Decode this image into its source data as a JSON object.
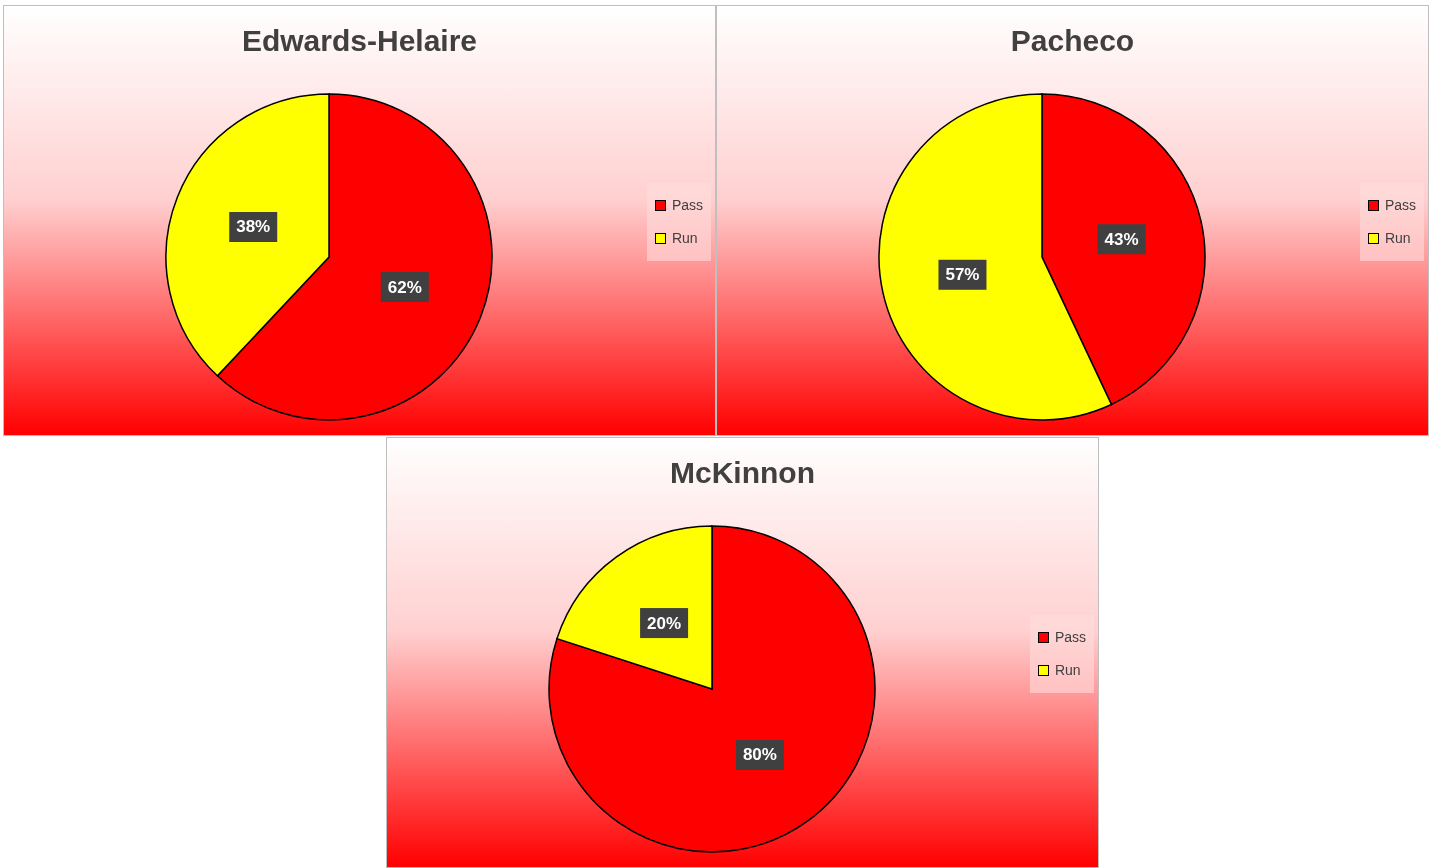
{
  "chart_data": [
    {
      "type": "pie",
      "title": "Edwards-Helaire",
      "categories": [
        "Pass",
        "Run"
      ],
      "values": [
        62,
        38
      ],
      "value_labels": [
        "62%",
        "38%"
      ],
      "colors": [
        "#ff0000",
        "#ffff00"
      ],
      "legend": "right"
    },
    {
      "type": "pie",
      "title": "Pacheco",
      "categories": [
        "Pass",
        "Run"
      ],
      "values": [
        43,
        57
      ],
      "value_labels": [
        "43%",
        "57%"
      ],
      "colors": [
        "#ff0000",
        "#ffff00"
      ],
      "legend": "right"
    },
    {
      "type": "pie",
      "title": "McKinnon",
      "categories": [
        "Pass",
        "Run"
      ],
      "values": [
        80,
        20
      ],
      "value_labels": [
        "80%",
        "20%"
      ],
      "colors": [
        "#ff0000",
        "#ffff00"
      ],
      "legend": "right"
    }
  ]
}
